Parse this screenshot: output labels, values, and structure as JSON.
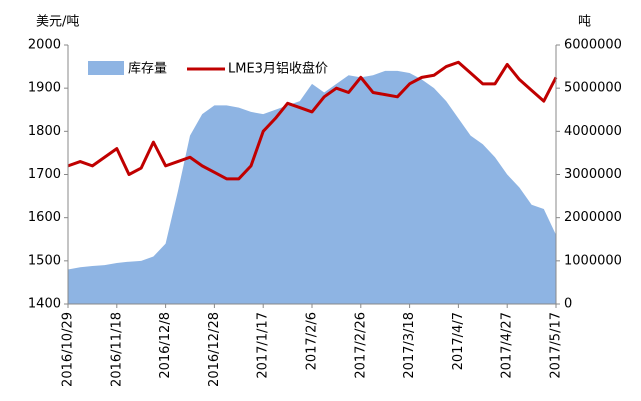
{
  "chart_data": {
    "type": "line",
    "y_label": "美元/吨",
    "y2_label": "吨",
    "x": [
      "2016/10/29",
      "2016/11/3",
      "2016/11/8",
      "2016/11/13",
      "2016/11/18",
      "2016/11/23",
      "2016/11/28",
      "2016/12/3",
      "2016/12/8",
      "2016/12/13",
      "2016/12/18",
      "2016/12/23",
      "2016/12/28",
      "2017/1/2",
      "2017/1/7",
      "2017/1/12",
      "2017/1/17",
      "2017/1/22",
      "2017/1/27",
      "2017/2/1",
      "2017/2/6",
      "2017/2/11",
      "2017/2/16",
      "2017/2/21",
      "2017/2/26",
      "2017/3/3",
      "2017/3/8",
      "2017/3/13",
      "2017/3/18",
      "2017/3/23",
      "2017/3/28",
      "2017/4/2",
      "2017/4/7",
      "2017/4/12",
      "2017/4/17",
      "2017/4/22",
      "2017/4/27",
      "2017/5/2",
      "2017/5/7",
      "2017/5/12",
      "2017/5/17"
    ],
    "xticks": [
      "2016/10/29",
      "2016/11/18",
      "2016/12/8",
      "2016/12/28",
      "2017/1/17",
      "2017/2/6",
      "2017/2/26",
      "2017/3/18",
      "2017/4/7",
      "2017/4/27",
      "2017/5/17"
    ],
    "series": [
      {
        "name": "库存量",
        "kind": "area",
        "axis": "y2",
        "color": "#8eb4e3",
        "values": [
          800000,
          850000,
          880000,
          900000,
          950000,
          980000,
          1000000,
          1100000,
          1400000,
          2600000,
          3900000,
          4400000,
          4600000,
          4600000,
          4550000,
          4450000,
          4400000,
          4500000,
          4600000,
          4700000,
          5100000,
          4900000,
          5100000,
          5300000,
          5250000,
          5300000,
          5400000,
          5400000,
          5350000,
          5200000,
          5000000,
          4700000,
          4300000,
          3900000,
          3700000,
          3400000,
          3000000,
          2700000,
          2300000,
          2200000,
          1600000
        ]
      },
      {
        "name": "LME3月铝收盘价",
        "kind": "line",
        "axis": "y",
        "color": "#c00000",
        "values": [
          1720,
          1730,
          1720,
          1740,
          1760,
          1700,
          1715,
          1775,
          1720,
          1730,
          1740,
          1720,
          1705,
          1690,
          1690,
          1720,
          1800,
          1830,
          1865,
          1855,
          1845,
          1880,
          1900,
          1890,
          1925,
          1890,
          1885,
          1880,
          1910,
          1925,
          1930,
          1950,
          1960,
          1935,
          1910,
          1910,
          1955,
          1920,
          1895,
          1870,
          1925
        ]
      }
    ],
    "ylim": [
      1400,
      2000
    ],
    "yticks": [
      1400,
      1500,
      1600,
      1700,
      1800,
      1900,
      2000
    ],
    "y2lim": [
      0,
      6000000
    ],
    "y2ticks": [
      0,
      1000000,
      2000000,
      3000000,
      4000000,
      5000000,
      6000000
    ]
  }
}
